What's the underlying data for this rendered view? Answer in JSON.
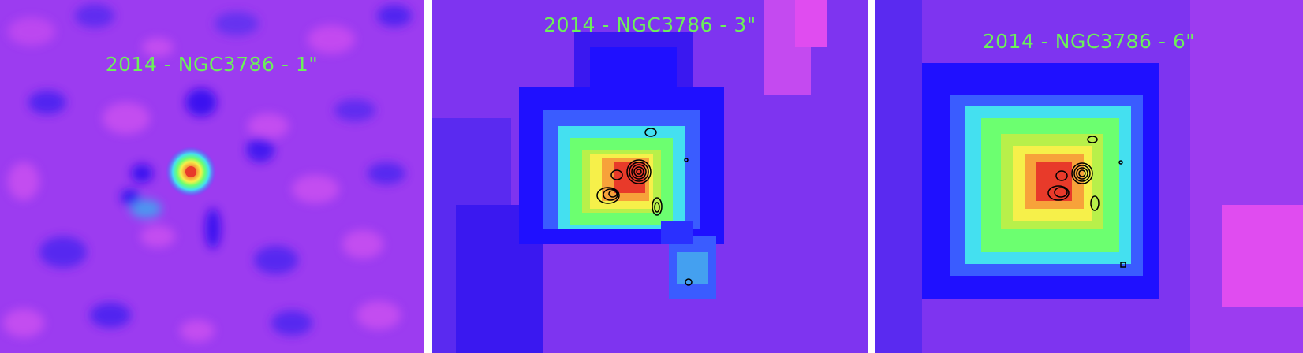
{
  "panels": [
    {
      "label": "2014 - NGC3786 - 1\""
    },
    {
      "label": "2014 - NGC3786 - 3\""
    },
    {
      "label": "2014 - NGC3786 - 6\""
    }
  ],
  "colormap": [
    "#1f10ff",
    "#3a5cff",
    "#44e0f0",
    "#6cff70",
    "#f6f04a",
    "#f7a23a",
    "#e83a2a"
  ],
  "background_colors": [
    "#9030f0",
    "#c040f0",
    "#5020f0"
  ],
  "contour_color": "#000000"
}
